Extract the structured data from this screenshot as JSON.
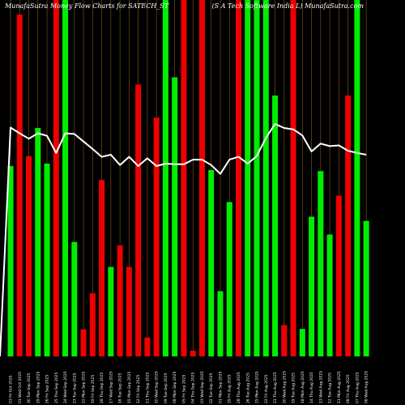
{
  "header": {
    "left_title": "MunafaSutra  Money Flow  Charts for SATECH_ST",
    "right_title": "(S A Tech Software  India  L) MunafaSutra.com"
  },
  "chart_data": {
    "type": "bar",
    "ylim": [
      0,
      100
    ],
    "grid": "vertical",
    "colors": {
      "up": "#00ee00",
      "down": "#ee0000",
      "line": "#ffffff",
      "grid": "#8a5a1e",
      "background": "#000000"
    },
    "categories": [
      "03 Fri Oct 2025",
      "01 Wed Oct 2025",
      "30 Tue Sep 2025",
      "29 Mon Sep 2025",
      "26 Fri Sep 2025",
      "25 Thu Sep 2025",
      "24 Wed Sep 2025",
      "23 Tue Sep 2025",
      "22 Mon Sep 2025",
      "19 Fri Sep 2025",
      "18 Thu Sep 2025",
      "17 Wed Sep 2025",
      "16 Tue Sep 2025",
      "15 Mon Sep 2025",
      "12 Fri Sep 2025",
      "11 Thu Sep 2025",
      "10 Wed Sep 2025",
      "09 Tue Sep 2025",
      "08 Mon Sep 2025",
      "05 Fri Sep 2025",
      "04 Thu Sep 2025",
      "03 Wed Sep 2025",
      "02 Tue Sep 2025",
      "01 Mon Sep 2025",
      "29 Fri Aug 2025",
      "28 Thu Aug 2025",
      "26 Tue Aug 2025",
      "25 Mon Aug 2025",
      "22 Fri Aug 2025",
      "21 Thu Aug 2025",
      "20 Wed Aug 2025",
      "19 Tue Aug 2025",
      "18 Mon Aug 2025",
      "14 Thu Aug 2025",
      "13 Wed Aug 2025",
      "12 Tue Aug 2025",
      "11 Mon Aug 2025",
      "08 Fri Aug 2025",
      "07 Thu Aug 2025",
      "06 Wed Aug 2025"
    ],
    "directions": [
      "up",
      "down",
      "down",
      "up",
      "up",
      "down",
      "up",
      "up",
      "down",
      "down",
      "down",
      "up",
      "down",
      "down",
      "down",
      "down",
      "down",
      "up",
      "up",
      "down",
      "down",
      "down",
      "up",
      "up",
      "up",
      "down",
      "up",
      "up",
      "up",
      "up",
      "down",
      "down",
      "up",
      "up",
      "up",
      "up",
      "down",
      "down",
      "up",
      "up"
    ],
    "values": [
      53.4,
      95.9,
      56.2,
      64.1,
      54.1,
      100,
      100,
      32.1,
      7.6,
      17.7,
      49.5,
      25.1,
      31.1,
      25.1,
      76.3,
      5.3,
      67,
      100,
      78.3,
      100,
      1.6,
      100,
      52.3,
      18.3,
      43.3,
      100,
      100,
      100,
      100,
      73.2,
      8.8,
      100,
      7.7,
      39.2,
      52,
      34.2,
      45.1,
      73.2,
      100,
      38
    ],
    "line": [
      64.2,
      62.6,
      61.1,
      62.6,
      61.9,
      57.1,
      62.6,
      62.4,
      60.3,
      58.2,
      56,
      56.6,
      53.7,
      56,
      53.4,
      55.6,
      53.4,
      54.1,
      53.9,
      53.9,
      55.2,
      55.2,
      53.7,
      51.2,
      55.2,
      56,
      54.1,
      56.2,
      61.3,
      65.2,
      64.1,
      63.7,
      62,
      57.5,
      59.7,
      59,
      59.2,
      57.7,
      57.1,
      56.6
    ]
  }
}
